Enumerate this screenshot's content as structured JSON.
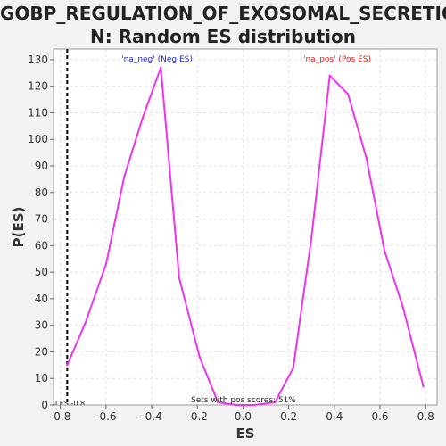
{
  "chart_data": {
    "type": "line",
    "title_lines": [
      "GOBP_REGULATION_OF_EXOSOMAL_SECRETIO",
      "N: Random ES distribution"
    ],
    "xlabel": "ES",
    "ylabel": "P(ES)",
    "xlim": [
      -0.83,
      0.85
    ],
    "ylim": [
      0,
      134
    ],
    "x_ticks": [
      -0.8,
      -0.6,
      -0.4,
      -0.2,
      0.0,
      0.2,
      0.4,
      0.6,
      0.8
    ],
    "x_tick_labels": [
      "-0.8",
      "-0.6",
      "-0.4",
      "-0.2",
      "0.0",
      "0.2",
      "0.4",
      "0.6",
      "0.8"
    ],
    "y_ticks": [
      0,
      10,
      20,
      30,
      40,
      50,
      60,
      70,
      80,
      90,
      100,
      110,
      120,
      130
    ],
    "grid": true,
    "series": [
      {
        "color": "#ee33ee",
        "x": [
          -0.77,
          -0.69,
          -0.6,
          -0.52,
          -0.44,
          -0.36,
          -0.28,
          -0.19,
          -0.11,
          -0.03,
          0.05,
          0.14,
          0.22,
          0.3,
          0.38,
          0.46,
          0.54,
          0.62,
          0.7,
          0.79
        ],
        "y": [
          15,
          31,
          53,
          86,
          108,
          127,
          48,
          18,
          1,
          0,
          0,
          1,
          14,
          63,
          124,
          117,
          93,
          58,
          37,
          7
        ]
      }
    ],
    "annotations": {
      "neg_label": "'na_neg' (Neg ES)",
      "neg_color": "#2222dd",
      "pos_label": "'na_pos' (Pos ES)",
      "pos_color": "#dd2222",
      "pos_scores_label": "Sets with pos scores: 51%",
      "real_es_label": "Real ES -0.8",
      "real_es_value": -0.77
    }
  }
}
